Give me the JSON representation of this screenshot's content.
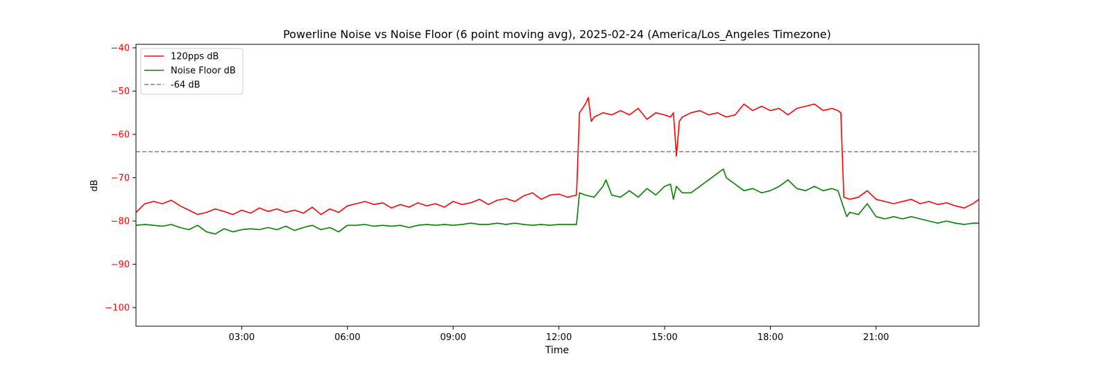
{
  "chart_data": {
    "type": "line",
    "title": "Powerline Noise vs Noise Floor (6 point moving avg), 2025-02-24 (America/Los_Angeles Timezone)",
    "xlabel": "Time",
    "ylabel": "dB",
    "ylabel_color": "#ff0000",
    "ytick_color": "#ff0000",
    "xlim": [
      "00:00",
      "23:55"
    ],
    "ylim": [
      -104.3,
      -39.2
    ],
    "xticks": [
      "03:00",
      "06:00",
      "09:00",
      "12:00",
      "15:00",
      "18:00",
      "21:00"
    ],
    "yticks": [
      -40,
      -50,
      -60,
      -70,
      -80,
      -90,
      -100
    ],
    "ytick_labels": [
      "−40",
      "−50",
      "−60",
      "−70",
      "−80",
      "−90",
      "−100"
    ],
    "legend_position": "top-left",
    "grid": false,
    "series": [
      {
        "name": "120pps dB",
        "color": "#ff0000",
        "style": "solid",
        "x": [
          "00:00",
          "00:15",
          "00:30",
          "00:45",
          "01:00",
          "01:15",
          "01:30",
          "01:45",
          "02:00",
          "02:15",
          "02:30",
          "02:45",
          "03:00",
          "03:15",
          "03:30",
          "03:45",
          "04:00",
          "04:15",
          "04:30",
          "04:45",
          "05:00",
          "05:15",
          "05:30",
          "05:45",
          "06:00",
          "06:15",
          "06:30",
          "06:45",
          "07:00",
          "07:15",
          "07:30",
          "07:45",
          "08:00",
          "08:15",
          "08:30",
          "08:45",
          "09:00",
          "09:15",
          "09:30",
          "09:45",
          "10:00",
          "10:15",
          "10:30",
          "10:45",
          "11:00",
          "11:15",
          "11:30",
          "11:45",
          "12:00",
          "12:15",
          "12:30",
          "12:35",
          "12:45",
          "12:50",
          "12:55",
          "13:00",
          "13:15",
          "13:30",
          "13:45",
          "14:00",
          "14:15",
          "14:30",
          "14:45",
          "15:00",
          "15:10",
          "15:15",
          "15:20",
          "15:25",
          "15:30",
          "15:45",
          "16:00",
          "16:15",
          "16:30",
          "16:45",
          "17:00",
          "17:15",
          "17:30",
          "17:45",
          "18:00",
          "18:15",
          "18:30",
          "18:45",
          "19:00",
          "19:15",
          "19:30",
          "19:45",
          "19:55",
          "20:00",
          "20:05",
          "20:15",
          "20:30",
          "20:45",
          "21:00",
          "21:15",
          "21:30",
          "21:45",
          "22:00",
          "22:15",
          "22:30",
          "22:45",
          "23:00",
          "23:15",
          "23:30",
          "23:45",
          "23:55"
        ],
        "y": [
          -78.0,
          -76.0,
          -75.5,
          -76.0,
          -75.2,
          -76.5,
          -77.5,
          -78.5,
          -78.0,
          -77.2,
          -77.8,
          -78.5,
          -77.5,
          -78.2,
          -77.0,
          -77.8,
          -77.2,
          -78.0,
          -77.5,
          -78.2,
          -76.8,
          -78.5,
          -77.2,
          -78.0,
          -76.5,
          -76.0,
          -75.5,
          -76.2,
          -75.8,
          -77.0,
          -76.2,
          -76.8,
          -75.8,
          -76.5,
          -76.0,
          -76.8,
          -75.5,
          -76.2,
          -75.8,
          -75.0,
          -76.2,
          -75.2,
          -74.8,
          -75.5,
          -74.2,
          -73.5,
          -75.0,
          -74.0,
          -73.8,
          -74.5,
          -74.0,
          -55.0,
          -53.0,
          -51.5,
          -57.0,
          -56.0,
          -55.0,
          -55.5,
          -54.5,
          -55.5,
          -54.0,
          -56.5,
          -55.0,
          -55.5,
          -56.0,
          -55.0,
          -65.0,
          -57.0,
          -56.0,
          -55.0,
          -54.5,
          -55.5,
          -55.0,
          -56.0,
          -55.5,
          -53.0,
          -54.5,
          -53.5,
          -54.5,
          -54.0,
          -55.5,
          -54.0,
          -53.5,
          -53.0,
          -54.5,
          -54.0,
          -54.5,
          -55.0,
          -74.5,
          -75.0,
          -74.5,
          -73.0,
          -75.0,
          -75.5,
          -76.0,
          -75.5,
          -75.0,
          -76.0,
          -75.5,
          -76.2,
          -75.8,
          -76.5,
          -77.0,
          -76.0,
          -75.0
        ]
      },
      {
        "name": "Noise Floor dB",
        "color": "#008000",
        "style": "solid",
        "x": [
          "00:00",
          "00:15",
          "00:30",
          "00:45",
          "01:00",
          "01:15",
          "01:30",
          "01:45",
          "02:00",
          "02:15",
          "02:30",
          "02:45",
          "03:00",
          "03:15",
          "03:30",
          "03:45",
          "04:00",
          "04:15",
          "04:30",
          "04:45",
          "05:00",
          "05:15",
          "05:30",
          "05:45",
          "06:00",
          "06:15",
          "06:30",
          "06:45",
          "07:00",
          "07:15",
          "07:30",
          "07:45",
          "08:00",
          "08:15",
          "08:30",
          "08:45",
          "09:00",
          "09:15",
          "09:30",
          "09:45",
          "10:00",
          "10:15",
          "10:30",
          "10:45",
          "11:00",
          "11:15",
          "11:30",
          "11:45",
          "12:00",
          "12:15",
          "12:30",
          "12:35",
          "12:45",
          "13:00",
          "13:15",
          "13:20",
          "13:30",
          "13:45",
          "14:00",
          "14:15",
          "14:30",
          "14:45",
          "15:00",
          "15:10",
          "15:15",
          "15:20",
          "15:30",
          "15:45",
          "16:00",
          "16:15",
          "16:30",
          "16:40",
          "16:45",
          "17:00",
          "17:15",
          "17:30",
          "17:45",
          "18:00",
          "18:15",
          "18:30",
          "18:45",
          "19:00",
          "19:15",
          "19:30",
          "19:45",
          "19:55",
          "20:00",
          "20:10",
          "20:15",
          "20:30",
          "20:45",
          "21:00",
          "21:15",
          "21:30",
          "21:45",
          "22:00",
          "22:15",
          "22:30",
          "22:45",
          "23:00",
          "23:15",
          "23:30",
          "23:45",
          "23:55"
        ],
        "y": [
          -81.0,
          -80.8,
          -81.0,
          -81.2,
          -80.8,
          -81.5,
          -82.0,
          -81.0,
          -82.5,
          -83.0,
          -81.8,
          -82.5,
          -82.0,
          -81.8,
          -82.0,
          -81.5,
          -82.0,
          -81.2,
          -82.2,
          -81.5,
          -81.0,
          -82.0,
          -81.5,
          -82.5,
          -81.0,
          -81.0,
          -80.8,
          -81.2,
          -81.0,
          -81.2,
          -81.0,
          -81.5,
          -81.0,
          -80.8,
          -81.0,
          -80.8,
          -81.0,
          -80.8,
          -80.5,
          -80.8,
          -80.8,
          -80.5,
          -80.8,
          -80.5,
          -80.8,
          -81.0,
          -80.8,
          -81.0,
          -80.8,
          -80.8,
          -80.8,
          -73.5,
          -74.0,
          -74.5,
          -72.0,
          -70.5,
          -74.0,
          -74.5,
          -73.0,
          -74.5,
          -72.5,
          -74.0,
          -72.0,
          -71.5,
          -75.0,
          -72.0,
          -73.5,
          -73.5,
          -72.0,
          -70.5,
          -69.0,
          -68.0,
          -70.0,
          -71.5,
          -73.0,
          -72.5,
          -73.5,
          -73.0,
          -72.0,
          -70.5,
          -72.5,
          -73.0,
          -72.0,
          -73.0,
          -72.5,
          -73.0,
          -75.0,
          -79.0,
          -78.0,
          -78.5,
          -76.0,
          -79.0,
          -79.5,
          -79.0,
          -79.5,
          -79.0,
          -79.5,
          -80.0,
          -80.5,
          -80.0,
          -80.5,
          -80.8,
          -80.5,
          -80.5
        ]
      },
      {
        "name": "-64 dB",
        "color": "#808080",
        "style": "dashed",
        "x": [
          "00:00",
          "23:55"
        ],
        "y": [
          -64,
          -64
        ]
      }
    ]
  }
}
